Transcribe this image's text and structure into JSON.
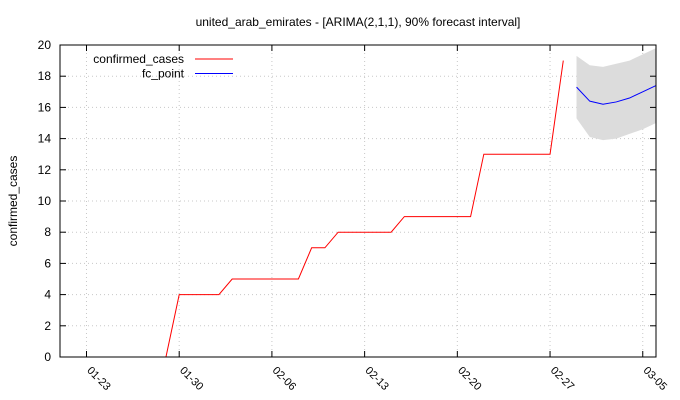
{
  "chart_data": {
    "type": "line",
    "title": "united_arab_emirates -  [ARIMA(2,1,1), 90% forecast interval]",
    "xlabel": "",
    "ylabel": "confirmed_cases",
    "ylim": [
      0,
      20
    ],
    "yticks": [
      0,
      2,
      4,
      6,
      8,
      10,
      12,
      14,
      16,
      18,
      20
    ],
    "xlim": [
      "2020-01-21",
      "2020-03-06"
    ],
    "xticks": [
      "01-23",
      "01-30",
      "02-06",
      "02-13",
      "02-20",
      "02-27",
      "03-05"
    ],
    "grid": true,
    "legend_position": "top-left",
    "series": [
      {
        "name": "confirmed_cases",
        "color": "#ff0000",
        "points": [
          [
            "2020-01-29",
            0
          ],
          [
            "2020-01-30",
            4
          ],
          [
            "2020-01-31",
            4
          ],
          [
            "2020-02-01",
            4
          ],
          [
            "2020-02-02",
            4
          ],
          [
            "2020-02-03",
            5
          ],
          [
            "2020-02-04",
            5
          ],
          [
            "2020-02-05",
            5
          ],
          [
            "2020-02-06",
            5
          ],
          [
            "2020-02-07",
            5
          ],
          [
            "2020-02-08",
            5
          ],
          [
            "2020-02-09",
            7
          ],
          [
            "2020-02-10",
            7
          ],
          [
            "2020-02-11",
            8
          ],
          [
            "2020-02-12",
            8
          ],
          [
            "2020-02-13",
            8
          ],
          [
            "2020-02-14",
            8
          ],
          [
            "2020-02-15",
            8
          ],
          [
            "2020-02-16",
            9
          ],
          [
            "2020-02-17",
            9
          ],
          [
            "2020-02-18",
            9
          ],
          [
            "2020-02-19",
            9
          ],
          [
            "2020-02-20",
            9
          ],
          [
            "2020-02-21",
            9
          ],
          [
            "2020-02-22",
            13
          ],
          [
            "2020-02-23",
            13
          ],
          [
            "2020-02-24",
            13
          ],
          [
            "2020-02-25",
            13
          ],
          [
            "2020-02-26",
            13
          ],
          [
            "2020-02-27",
            13
          ],
          [
            "2020-02-28",
            19
          ]
        ]
      },
      {
        "name": "fc_point",
        "color": "#0000ff",
        "points": [
          [
            "2020-02-29",
            17.3
          ],
          [
            "2020-03-01",
            16.4
          ],
          [
            "2020-03-02",
            16.2
          ],
          [
            "2020-03-03",
            16.35
          ],
          [
            "2020-03-04",
            16.6
          ],
          [
            "2020-03-05",
            17.0
          ],
          [
            "2020-03-06",
            17.4
          ]
        ]
      }
    ],
    "forecast_interval": {
      "color": "#dcdcdc",
      "points": [
        [
          "2020-02-29",
          15.3,
          19.3
        ],
        [
          "2020-03-01",
          14.1,
          18.7
        ],
        [
          "2020-03-02",
          13.9,
          18.6
        ],
        [
          "2020-03-03",
          14.0,
          18.8
        ],
        [
          "2020-03-04",
          14.3,
          19.0
        ],
        [
          "2020-03-05",
          14.6,
          19.4
        ],
        [
          "2020-03-06",
          15.0,
          19.8
        ]
      ]
    }
  }
}
